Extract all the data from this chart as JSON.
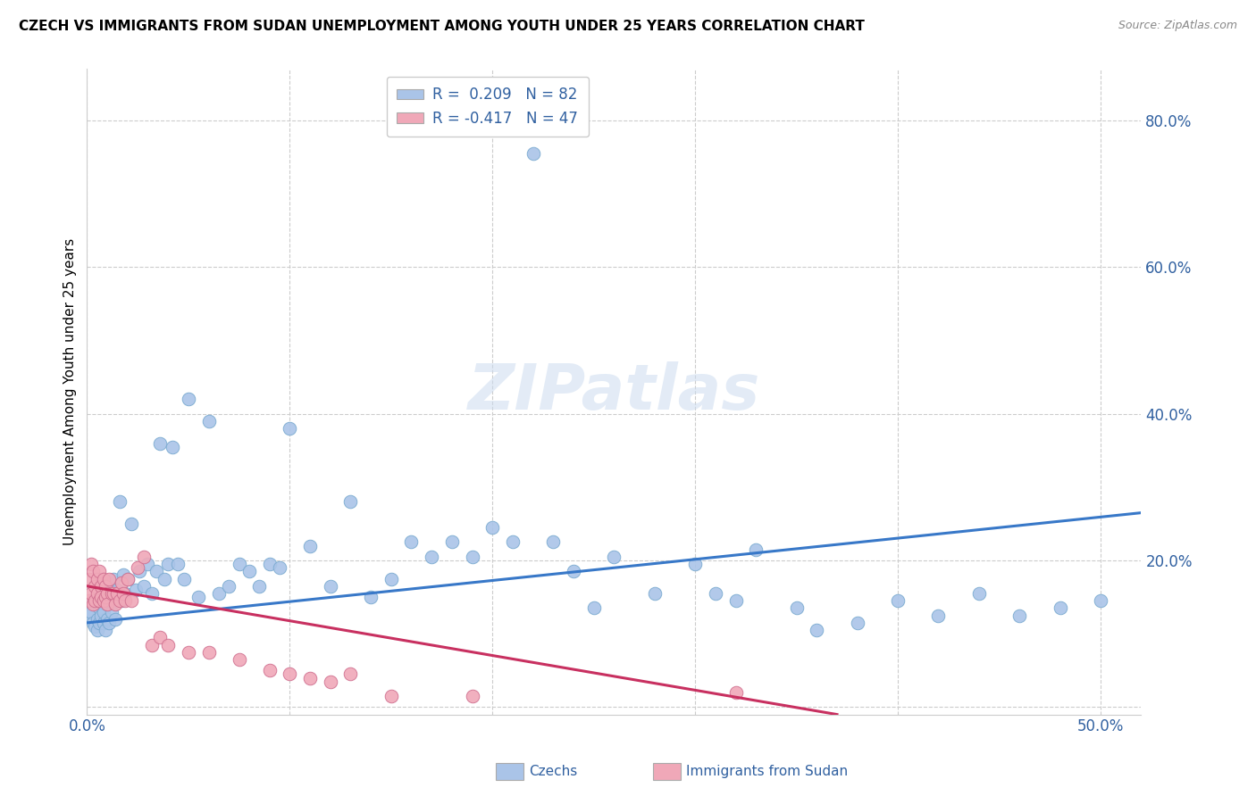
{
  "title": "CZECH VS IMMIGRANTS FROM SUDAN UNEMPLOYMENT AMONG YOUTH UNDER 25 YEARS CORRELATION CHART",
  "source": "Source: ZipAtlas.com",
  "ylabel": "Unemployment Among Youth under 25 years",
  "xlim": [
    0.0,
    0.52
  ],
  "ylim": [
    -0.01,
    0.87
  ],
  "yticks": [
    0.0,
    0.2,
    0.4,
    0.6,
    0.8
  ],
  "ytick_labels": [
    "",
    "20.0%",
    "40.0%",
    "60.0%",
    "80.0%"
  ],
  "xticks": [
    0.0,
    0.1,
    0.2,
    0.3,
    0.4,
    0.5
  ],
  "xtick_labels": [
    "0.0%",
    "",
    "",
    "",
    "",
    "50.0%"
  ],
  "czech_color": "#aac4e8",
  "czech_edge_color": "#7aaad0",
  "sudan_color": "#f0a8b8",
  "sudan_edge_color": "#d07090",
  "czech_line_color": "#3878c8",
  "sudan_line_color": "#c83060",
  "watermark_text": "ZIPatlas",
  "legend_box_czech_color": "#aac4e8",
  "legend_box_sudan_color": "#f0a8b8",
  "legend_text_color": "#3060a0",
  "czech_R": 0.209,
  "czech_N": 82,
  "sudan_R": -0.417,
  "sudan_N": 47,
  "czech_line_x0": 0.0,
  "czech_line_x1": 0.52,
  "czech_line_y0": 0.115,
  "czech_line_y1": 0.265,
  "sudan_line_x0": 0.0,
  "sudan_line_x1": 0.37,
  "sudan_line_y0": 0.165,
  "sudan_line_y1": -0.01,
  "czech_scatter_x": [
    0.001,
    0.002,
    0.003,
    0.003,
    0.004,
    0.005,
    0.005,
    0.006,
    0.006,
    0.007,
    0.007,
    0.008,
    0.008,
    0.009,
    0.009,
    0.01,
    0.01,
    0.011,
    0.012,
    0.012,
    0.013,
    0.014,
    0.015,
    0.016,
    0.017,
    0.018,
    0.019,
    0.02,
    0.022,
    0.024,
    0.026,
    0.028,
    0.03,
    0.032,
    0.034,
    0.036,
    0.038,
    0.04,
    0.042,
    0.045,
    0.048,
    0.05,
    0.055,
    0.06,
    0.065,
    0.07,
    0.075,
    0.08,
    0.085,
    0.09,
    0.095,
    0.1,
    0.11,
    0.12,
    0.13,
    0.14,
    0.15,
    0.16,
    0.17,
    0.18,
    0.19,
    0.2,
    0.21,
    0.22,
    0.23,
    0.24,
    0.25,
    0.26,
    0.28,
    0.3,
    0.31,
    0.32,
    0.33,
    0.35,
    0.36,
    0.38,
    0.4,
    0.42,
    0.44,
    0.46,
    0.48,
    0.5
  ],
  "czech_scatter_y": [
    0.125,
    0.13,
    0.115,
    0.145,
    0.11,
    0.12,
    0.105,
    0.135,
    0.115,
    0.125,
    0.15,
    0.115,
    0.13,
    0.105,
    0.145,
    0.12,
    0.14,
    0.115,
    0.16,
    0.13,
    0.175,
    0.12,
    0.16,
    0.28,
    0.145,
    0.18,
    0.155,
    0.175,
    0.25,
    0.16,
    0.185,
    0.165,
    0.195,
    0.155,
    0.185,
    0.36,
    0.175,
    0.195,
    0.355,
    0.195,
    0.175,
    0.42,
    0.15,
    0.39,
    0.155,
    0.165,
    0.195,
    0.185,
    0.165,
    0.195,
    0.19,
    0.38,
    0.22,
    0.165,
    0.28,
    0.15,
    0.175,
    0.225,
    0.205,
    0.225,
    0.205,
    0.245,
    0.225,
    0.755,
    0.225,
    0.185,
    0.135,
    0.205,
    0.155,
    0.195,
    0.155,
    0.145,
    0.215,
    0.135,
    0.105,
    0.115,
    0.145,
    0.125,
    0.155,
    0.125,
    0.135,
    0.145
  ],
  "sudan_scatter_x": [
    0.001,
    0.001,
    0.002,
    0.002,
    0.003,
    0.003,
    0.004,
    0.004,
    0.005,
    0.005,
    0.006,
    0.006,
    0.007,
    0.007,
    0.008,
    0.008,
    0.009,
    0.009,
    0.01,
    0.01,
    0.011,
    0.012,
    0.013,
    0.014,
    0.015,
    0.016,
    0.017,
    0.018,
    0.019,
    0.02,
    0.022,
    0.025,
    0.028,
    0.032,
    0.036,
    0.04,
    0.05,
    0.06,
    0.075,
    0.09,
    0.1,
    0.11,
    0.12,
    0.13,
    0.15,
    0.19,
    0.32
  ],
  "sudan_scatter_y": [
    0.145,
    0.175,
    0.155,
    0.195,
    0.14,
    0.185,
    0.165,
    0.145,
    0.175,
    0.155,
    0.185,
    0.145,
    0.165,
    0.15,
    0.175,
    0.145,
    0.165,
    0.15,
    0.155,
    0.14,
    0.175,
    0.155,
    0.155,
    0.14,
    0.155,
    0.145,
    0.17,
    0.155,
    0.145,
    0.175,
    0.145,
    0.19,
    0.205,
    0.085,
    0.095,
    0.085,
    0.075,
    0.075,
    0.065,
    0.05,
    0.045,
    0.04,
    0.035,
    0.045,
    0.015,
    0.015,
    0.02
  ]
}
